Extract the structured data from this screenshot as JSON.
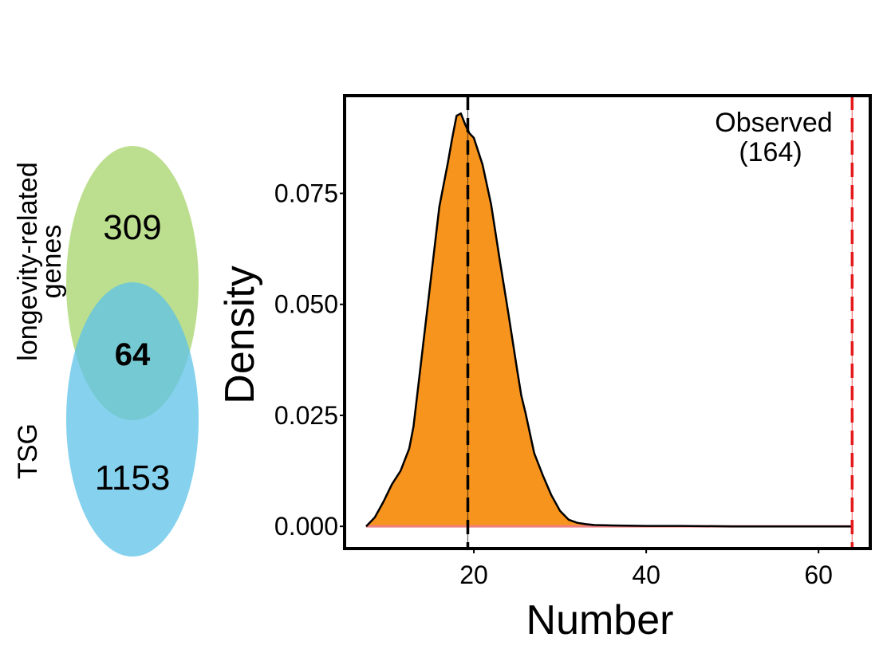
{
  "chart_data": [
    {
      "type": "venn",
      "sets": [
        {
          "label_lines": [
            "longevity-related",
            "genes"
          ],
          "only_count": "309",
          "color": "#A6D46A"
        },
        {
          "label_lines": [
            "TSG"
          ],
          "only_count": "1153",
          "color": "#5CC1E8"
        }
      ],
      "intersection": "64"
    },
    {
      "type": "area",
      "xlabel": "Number",
      "ylabel": "Density",
      "xlim": [
        5,
        66
      ],
      "ylim": [
        -0.005,
        0.097
      ],
      "x_ticks": [
        20,
        40,
        60
      ],
      "y_ticks": [
        0,
        0.025,
        0.05,
        0.075
      ],
      "y_tick_labels": [
        "0.000",
        "0.025",
        "0.050",
        "0.075"
      ],
      "fill_color": "#F7941D",
      "x": [
        7.5,
        8.5,
        9.5,
        10.5,
        11.5,
        12.5,
        13,
        14,
        15,
        16,
        17,
        17.5,
        18,
        18.5,
        19,
        19.5,
        20,
        21,
        22,
        23,
        24,
        25,
        25.5,
        26,
        27,
        28,
        29,
        30,
        31,
        32,
        33,
        34,
        36,
        40,
        44,
        50,
        56,
        63.8
      ],
      "y": [
        0.0,
        0.002,
        0.0055,
        0.0095,
        0.0125,
        0.0175,
        0.0225,
        0.039,
        0.0555,
        0.072,
        0.082,
        0.0875,
        0.0925,
        0.093,
        0.0905,
        0.0885,
        0.0875,
        0.0815,
        0.0725,
        0.06,
        0.048,
        0.0355,
        0.0295,
        0.0255,
        0.0165,
        0.0115,
        0.007,
        0.0035,
        0.0015,
        0.0008,
        0.0005,
        0.0003,
        0.0002,
        0.0001,
        0.0001,
        0.0,
        0.0,
        0.0
      ],
      "reference_lines": [
        {
          "x": 19.3,
          "color": "#000000",
          "style": "dashed"
        },
        {
          "x": 63.9,
          "color": "#E41A1C",
          "style": "dashed"
        }
      ],
      "annotation": {
        "lines": [
          "Observed",
          "(164)"
        ]
      }
    }
  ]
}
